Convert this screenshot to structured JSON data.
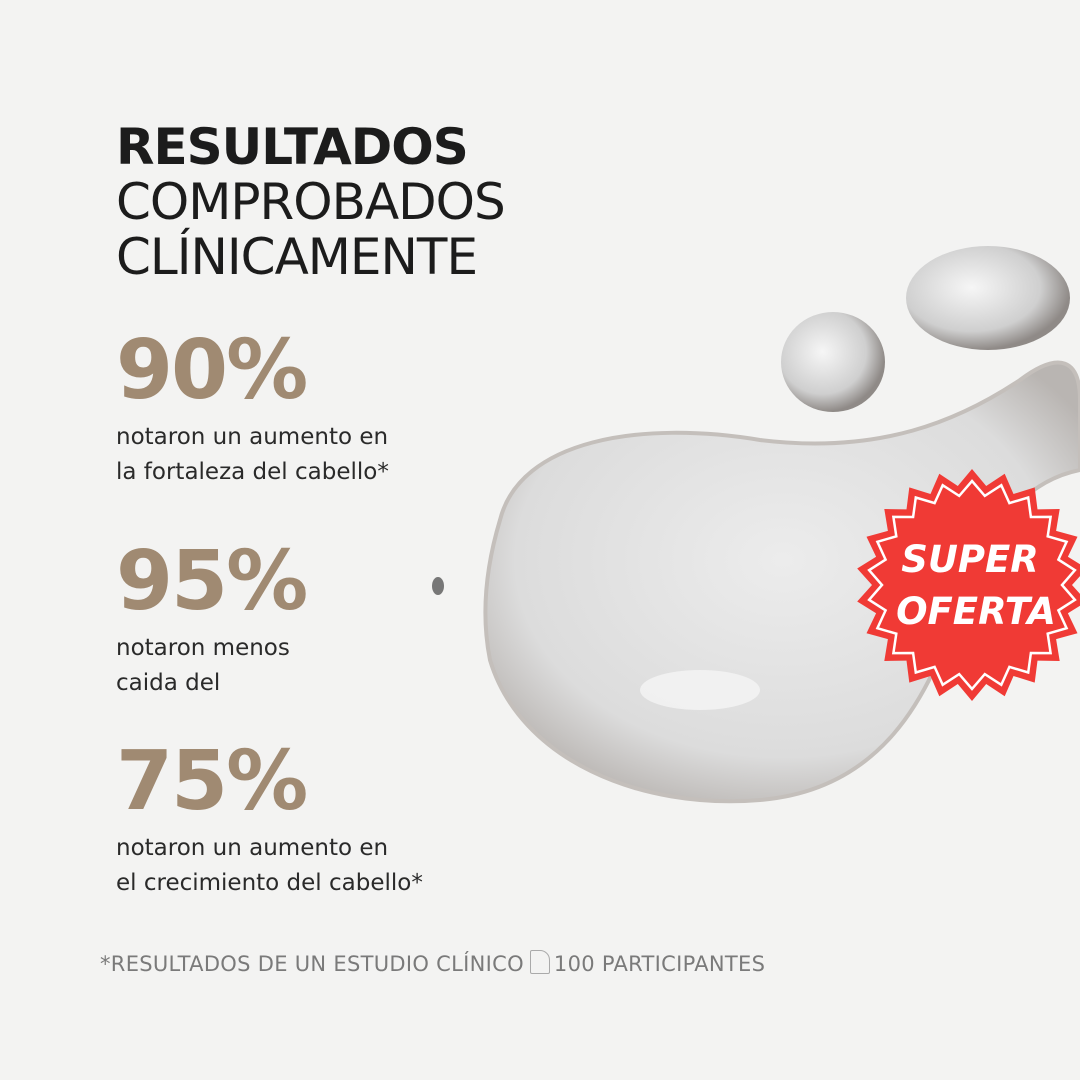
{
  "title": {
    "line1": "RESULTADOS",
    "line2": "COMPROBADOS",
    "line3": "CLÍNICAMENTE"
  },
  "stats": [
    {
      "value": "90%",
      "line1": "notaron un aumento en",
      "line2": "la fortaleza del cabello*"
    },
    {
      "value": "95%",
      "line1": "notaron menos",
      "line2": "caida del"
    },
    {
      "value": "75%",
      "line1": "notaron un aumento en",
      "line2": "el crecimiento del cabello*"
    }
  ],
  "footnote": {
    "before": "*RESULTADOS DE UN ESTUDIO CLÍNICO",
    "after": "100  PARTICIPANTES"
  },
  "badge": {
    "line1": "SUPER",
    "line2": "OFERTA",
    "color": "#f03a35"
  },
  "colors": {
    "accent": "#a08a72",
    "text": "#1c1c1c",
    "background": "#f3f3f2"
  }
}
